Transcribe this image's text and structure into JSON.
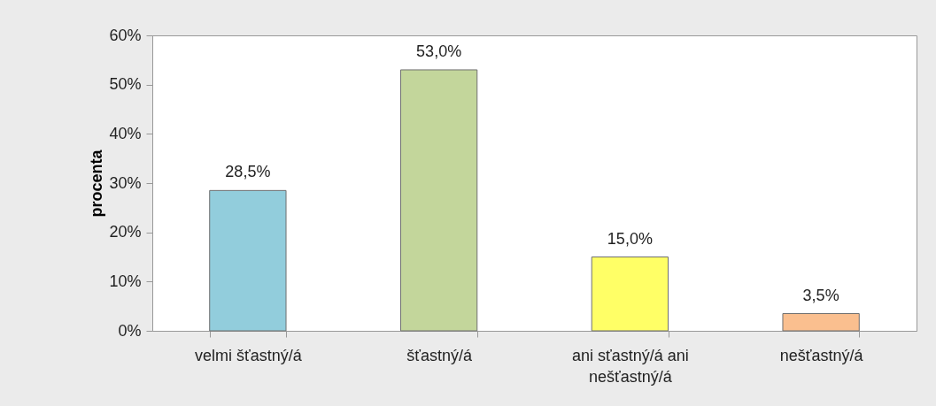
{
  "chart_data": {
    "type": "bar",
    "ylabel": "procenta",
    "categories": [
      "velmi šťastný/á",
      "šťastný/á",
      "ani sťastný/á ani nešťastný/á",
      "nešťastný/á"
    ],
    "values": [
      28.5,
      53.0,
      15.0,
      3.5
    ],
    "value_labels": [
      "28,5%",
      "53,0%",
      "15,0%",
      "3,5%"
    ],
    "colors": [
      "#92cddc",
      "#c3d69b",
      "#ffff66",
      "#fabf8f"
    ],
    "ylim": [
      0,
      60
    ],
    "yticks": [
      {
        "value": 0,
        "label": "0%"
      },
      {
        "value": 10,
        "label": "10%"
      },
      {
        "value": 20,
        "label": "20%"
      },
      {
        "value": 30,
        "label": "30%"
      },
      {
        "value": 40,
        "label": "40%"
      },
      {
        "value": 50,
        "label": "50%"
      },
      {
        "value": 60,
        "label": "60%"
      }
    ],
    "grid": false
  }
}
